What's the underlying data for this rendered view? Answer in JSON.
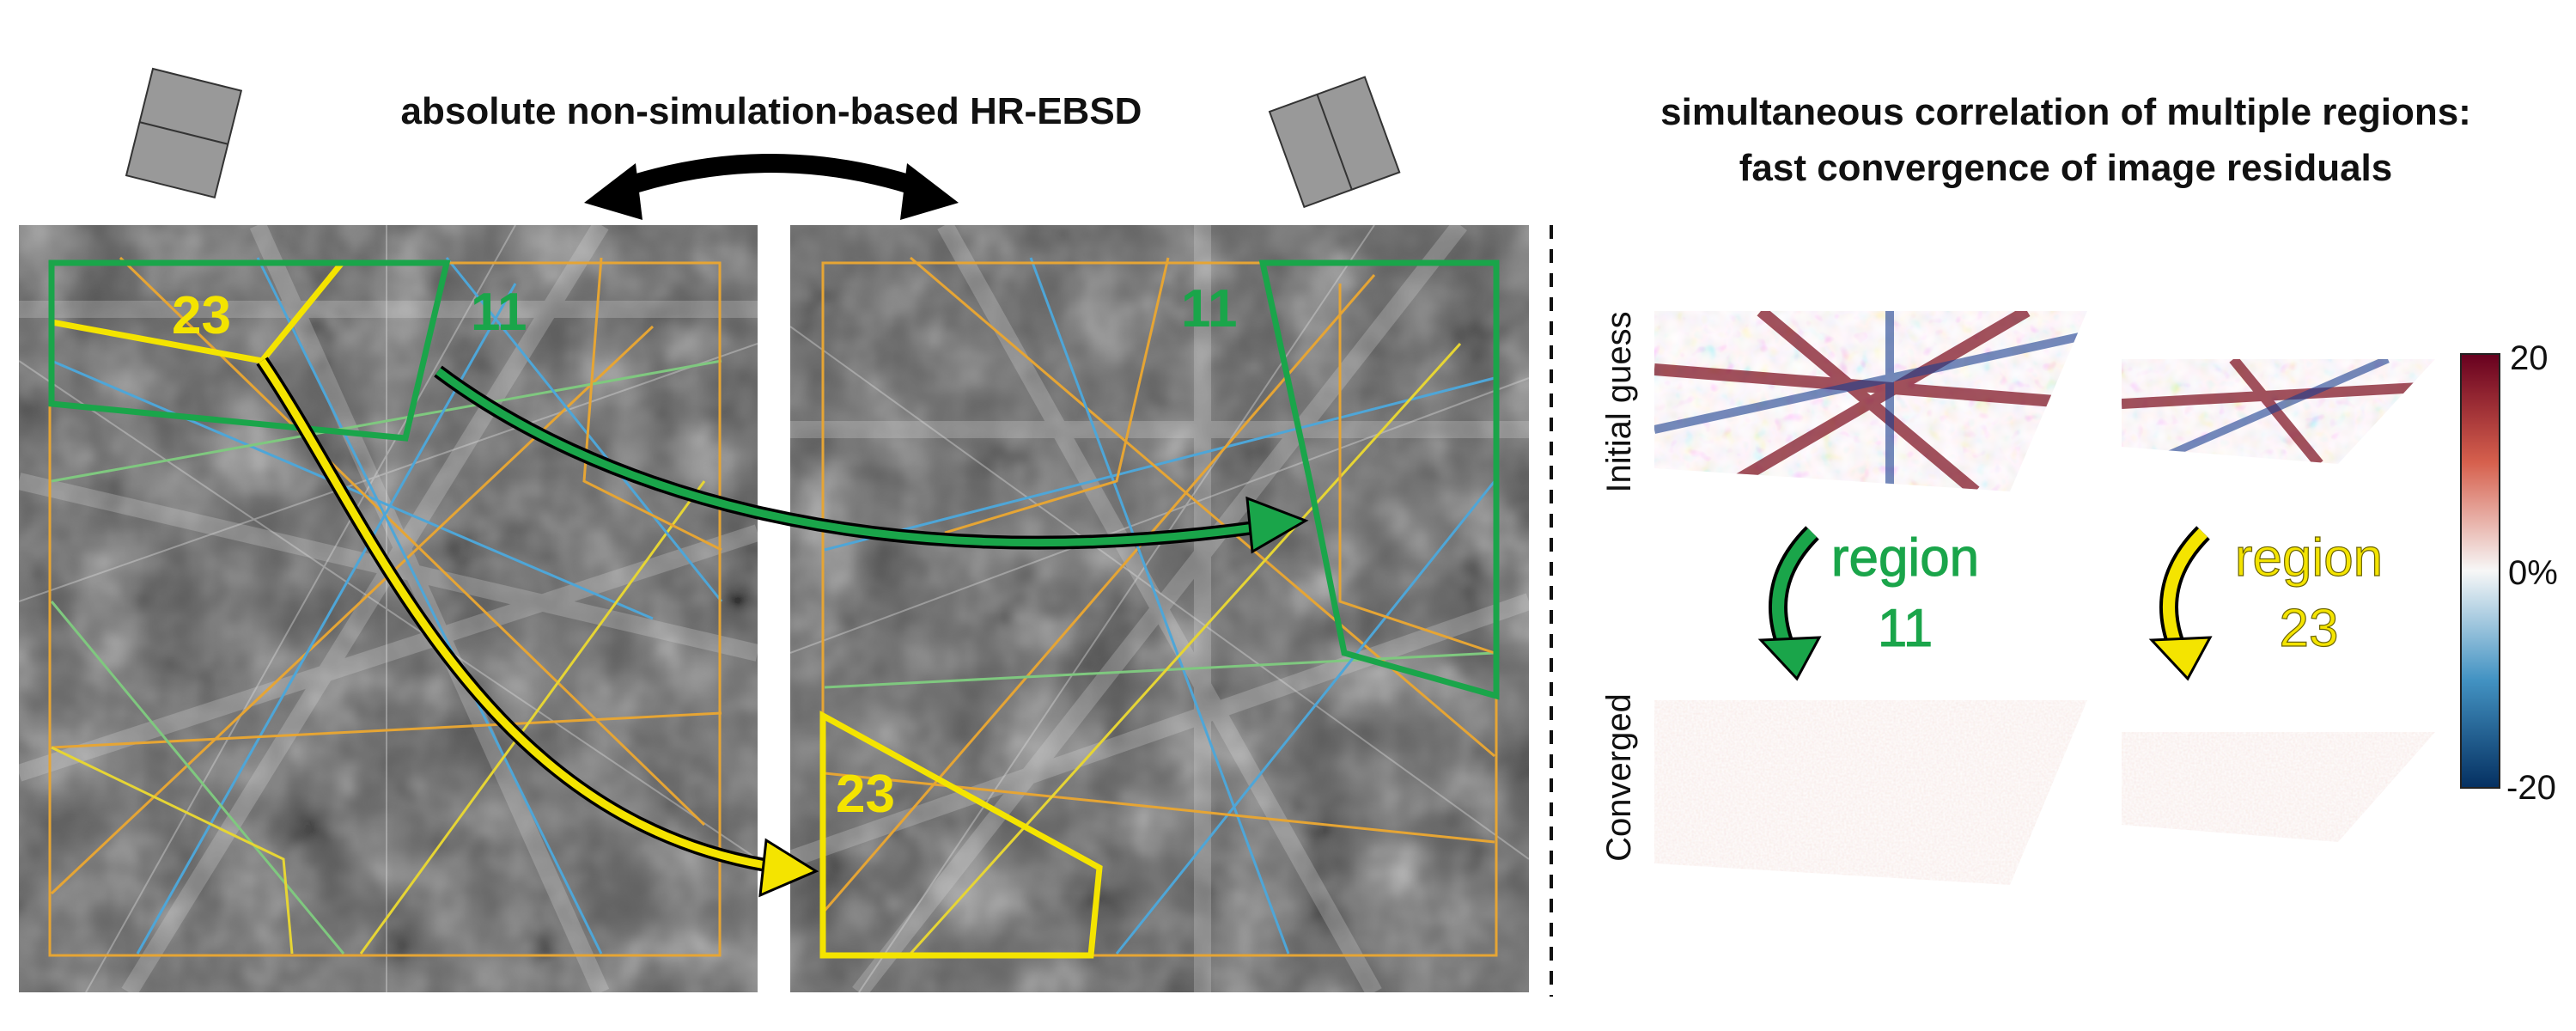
{
  "left": {
    "title": "absolute non-simulation-based HR-EBSD",
    "region_labels": [
      "23",
      "11",
      "11",
      "23"
    ]
  },
  "right": {
    "title_line1": "simultaneous correlation of multiple regions:",
    "title_line2": "fast convergence of image residuals",
    "row_labels": [
      "Initial guess",
      "Converged"
    ],
    "region_words": [
      "region",
      "region"
    ],
    "region_numbers": [
      "11",
      "23"
    ],
    "colorbar": {
      "max": "20",
      "mid": "0%",
      "min": "-20"
    }
  },
  "colors": {
    "yellow": "#f4e400",
    "green": "#1aa54a",
    "orange_line": "#e6a534",
    "residual_red": "#b2182b",
    "residual_blue": "#2166ac"
  }
}
